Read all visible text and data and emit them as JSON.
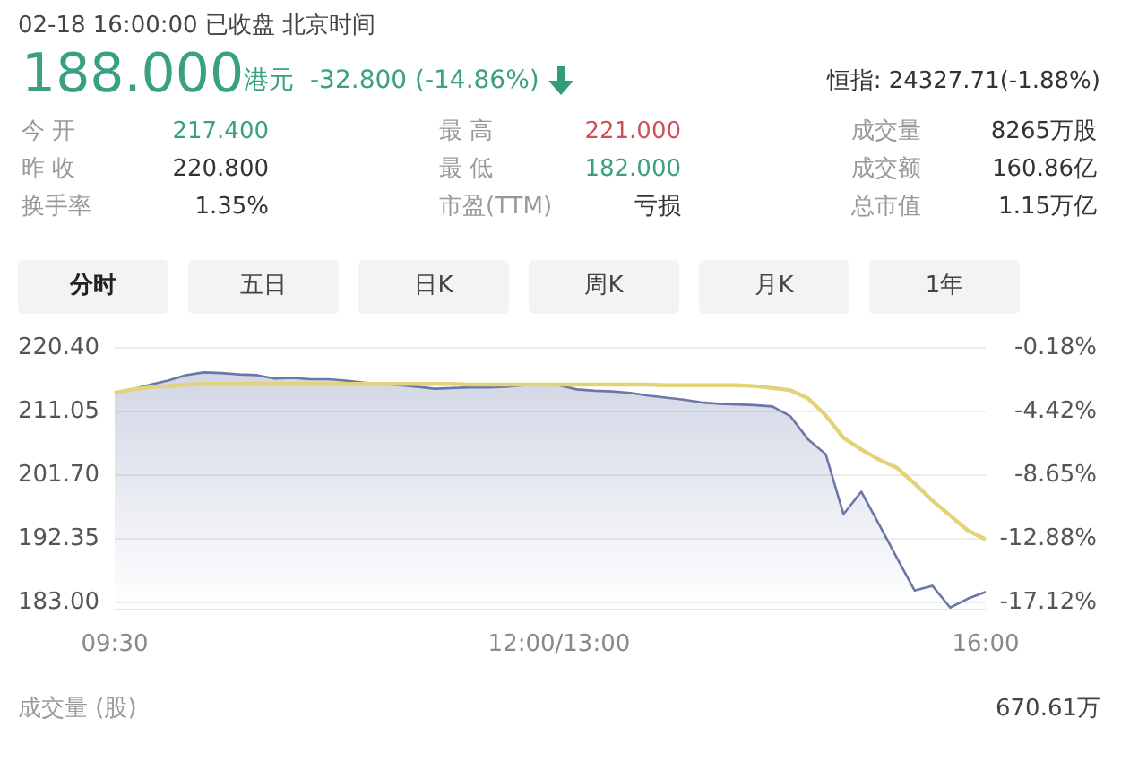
{
  "chart_data": {
    "type": "area",
    "title": "02-18 16:00:00  已收盘  北京时间",
    "subtitle": "188.000",
    "annotations": [
      "港元",
      "-32.800 (-14.86%)",
      "恒指: 24327.71(-1.88%)",
      "今 开",
      "217.400",
      "最 高",
      "221.000",
      "成交量",
      "8265万股",
      "昨 收",
      "220.800",
      "最 低",
      "182.000",
      "成交额",
      "160.86亿",
      "换手率",
      "1.35%",
      "市盈(TTM)",
      "亏损",
      "总市值",
      "1.15万亿",
      "分时",
      "五日",
      "日K",
      "周K",
      "月K",
      "1年",
      "成交量 (股)",
      "670.61万"
    ],
    "categories": [
      "09:30",
      null,
      null,
      null,
      null,
      null,
      null,
      null,
      null,
      null,
      null,
      null,
      null,
      null,
      null,
      null,
      null,
      null,
      null,
      null,
      null,
      null,
      null,
      null,
      null,
      "12:00/13:00",
      null,
      null,
      null,
      null,
      null,
      null,
      null,
      null,
      null,
      null,
      null,
      null,
      null,
      null,
      null,
      null,
      null,
      null,
      null,
      null,
      null,
      null,
      null,
      "16:00"
    ],
    "series": [
      {
        "color": "#6a78a8",
        "values": [
          213.8,
          214.3,
          215.0,
          215.6,
          216.4,
          216.8,
          216.7,
          216.5,
          216.4,
          215.9,
          216.0,
          215.8,
          215.8,
          215.6,
          215.3,
          215.1,
          214.9,
          214.7,
          214.4,
          214.5,
          214.6,
          214.6,
          214.7,
          214.9,
          215.0,
          214.9,
          214.3,
          214.1,
          214.0,
          213.8,
          213.4,
          213.1,
          212.8,
          212.4,
          212.2,
          212.1,
          212.0,
          211.8,
          210.4,
          207.0,
          204.8,
          196.0,
          199.3,
          194.5,
          189.6,
          184.8,
          185.5,
          182.3,
          183.6,
          184.6
        ]
      },
      {
        "type": "line",
        "color": "#e2d27a",
        "values": [
          213.8,
          214.3,
          214.6,
          214.8,
          215.0,
          215.1,
          215.1,
          215.1,
          215.1,
          215.1,
          215.1,
          215.1,
          215.1,
          215.1,
          215.1,
          215.1,
          215.1,
          215.1,
          215.1,
          215.1,
          215.0,
          215.0,
          215.0,
          215.0,
          215.0,
          215.0,
          215.0,
          215.0,
          215.0,
          215.0,
          215.0,
          214.9,
          214.9,
          214.9,
          214.9,
          214.9,
          214.8,
          214.5,
          214.2,
          213.0,
          210.5,
          207.2,
          205.5,
          204.0,
          202.8,
          200.5,
          198.0,
          195.8,
          193.6,
          192.3
        ]
      }
    ],
    "ylim": [
      182.0,
      220.4
    ],
    "yticks": [
      {
        "value": 220.4,
        "label": "220.40"
      },
      {
        "value": 211.05,
        "label": "211.05"
      },
      {
        "value": 201.7,
        "label": "201.70"
      },
      {
        "value": 192.35,
        "label": "192.35"
      },
      {
        "value": 183.0,
        "label": "183.00"
      }
    ],
    "y2lim": [
      -17.57,
      -0.18
    ],
    "y2ticks": [
      {
        "value": -0.18,
        "label": "-0.18%"
      },
      {
        "value": -4.42,
        "label": "-4.42%"
      },
      {
        "value": -8.65,
        "label": "-8.65%"
      },
      {
        "value": -12.88,
        "label": "-12.88%"
      },
      {
        "value": -17.12,
        "label": "-17.12%"
      }
    ],
    "grid": "y",
    "legend": false,
    "marker": "none",
    "line_style": "solid"
  }
}
